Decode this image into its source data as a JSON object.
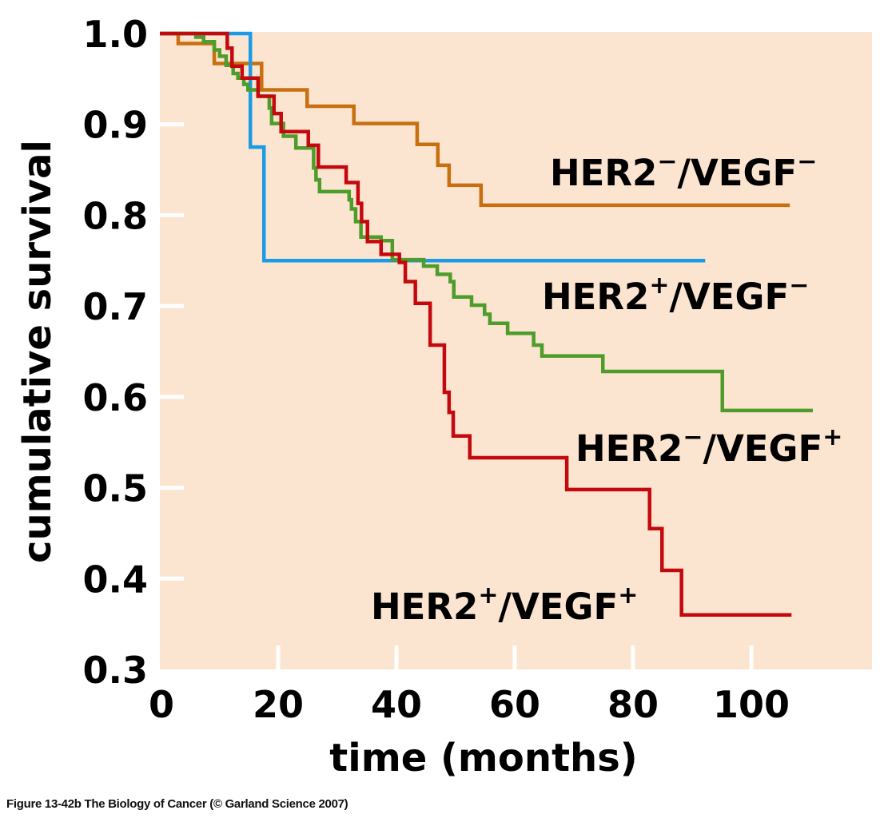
{
  "chart_data": {
    "type": "line",
    "step": true,
    "title": "",
    "xlabel": "time (months)",
    "ylabel": "cumulative survival",
    "xlim": [
      0,
      120
    ],
    "ylim": [
      0.3,
      1.0
    ],
    "xticks": [
      0,
      20,
      40,
      60,
      80,
      100
    ],
    "xtick_labels": [
      "0",
      "20",
      "40",
      "60",
      "80",
      "100"
    ],
    "yticks": [
      1.0,
      0.9,
      0.8,
      0.7,
      0.6,
      0.5,
      0.4,
      0.3
    ],
    "ytick_labels": [
      "1.0",
      "0.9",
      "0.8",
      "0.7",
      "0.6",
      "0.5",
      "0.4",
      "0.3"
    ],
    "grid": false,
    "background_color": "#fbe4d0",
    "series": [
      {
        "name": "HER2-/VEGF-",
        "label_main": "HER2",
        "label_sup1": "−",
        "label_mid": "/VEGF",
        "label_sup2": "−",
        "color": "#c8700f",
        "end_x": 106.5,
        "steps": [
          [
            0,
            1.0
          ],
          [
            3.1,
            0.989
          ],
          [
            9.2,
            0.967
          ],
          [
            17.2,
            0.938
          ],
          [
            24.9,
            0.92
          ],
          [
            32.8,
            0.901
          ],
          [
            43.5,
            0.878
          ],
          [
            47.0,
            0.855
          ],
          [
            48.9,
            0.833
          ],
          [
            54.3,
            0.811
          ]
        ]
      },
      {
        "name": "HER2+/VEGF-",
        "label_main": "HER2",
        "label_sup1": "+",
        "label_mid": "/VEGF",
        "label_sup2": "−",
        "color": "#1a9be6",
        "end_x": 92.2,
        "steps": [
          [
            0,
            1.0
          ],
          [
            15.3,
            0.875
          ],
          [
            17.6,
            0.75
          ]
        ]
      },
      {
        "name": "HER2-/VEGF+",
        "label_main": "HER2",
        "label_sup1": "−",
        "label_mid": "/VEGF",
        "label_sup2": "+",
        "color": "#4e9c2a",
        "end_x": 110.4,
        "steps": [
          [
            0,
            1.0
          ],
          [
            6.1,
            0.996
          ],
          [
            7.4,
            0.991
          ],
          [
            9.2,
            0.982
          ],
          [
            10.1,
            0.975
          ],
          [
            11.2,
            0.965
          ],
          [
            12.4,
            0.956
          ],
          [
            13.2,
            0.951
          ],
          [
            14.2,
            0.944
          ],
          [
            14.9,
            0.938
          ],
          [
            16.6,
            0.931
          ],
          [
            18.5,
            0.918
          ],
          [
            18.9,
            0.901
          ],
          [
            20.9,
            0.887
          ],
          [
            23.0,
            0.874
          ],
          [
            26.0,
            0.852
          ],
          [
            26.4,
            0.839
          ],
          [
            27.0,
            0.826
          ],
          [
            32.0,
            0.817
          ],
          [
            32.4,
            0.807
          ],
          [
            33.1,
            0.793
          ],
          [
            34.0,
            0.776
          ],
          [
            37.4,
            0.772
          ],
          [
            39.3,
            0.751
          ],
          [
            44.6,
            0.744
          ],
          [
            46.9,
            0.735
          ],
          [
            49.1,
            0.727
          ],
          [
            49.7,
            0.71
          ],
          [
            52.7,
            0.701
          ],
          [
            54.9,
            0.691
          ],
          [
            55.8,
            0.681
          ],
          [
            58.8,
            0.67
          ],
          [
            63.2,
            0.657
          ],
          [
            64.6,
            0.645
          ],
          [
            74.9,
            0.628
          ],
          [
            95.1,
            0.585
          ]
        ]
      },
      {
        "name": "HER2+/VEGF+",
        "label_main": "HER2",
        "label_sup1": "+",
        "label_mid": "/VEGF",
        "label_sup2": "+",
        "color": "#c4090e",
        "end_x": 106.8,
        "steps": [
          [
            0,
            1.0
          ],
          [
            11.4,
            0.984
          ],
          [
            12.2,
            0.964
          ],
          [
            13.9,
            0.951
          ],
          [
            16.6,
            0.931
          ],
          [
            19.3,
            0.912
          ],
          [
            20.5,
            0.892
          ],
          [
            25.1,
            0.877
          ],
          [
            26.8,
            0.853
          ],
          [
            31.5,
            0.836
          ],
          [
            33.5,
            0.813
          ],
          [
            34.1,
            0.793
          ],
          [
            35.1,
            0.771
          ],
          [
            37.4,
            0.757
          ],
          [
            40.5,
            0.748
          ],
          [
            41.5,
            0.727
          ],
          [
            43.2,
            0.703
          ],
          [
            45.7,
            0.657
          ],
          [
            48.1,
            0.605
          ],
          [
            48.9,
            0.583
          ],
          [
            49.6,
            0.557
          ],
          [
            52.4,
            0.533
          ],
          [
            68.8,
            0.498
          ],
          [
            82.8,
            0.455
          ],
          [
            84.9,
            0.409
          ],
          [
            88.2,
            0.36
          ]
        ]
      }
    ]
  },
  "caption": "Figure 13-42b  The Biology of Cancer (© Garland Science 2007)"
}
